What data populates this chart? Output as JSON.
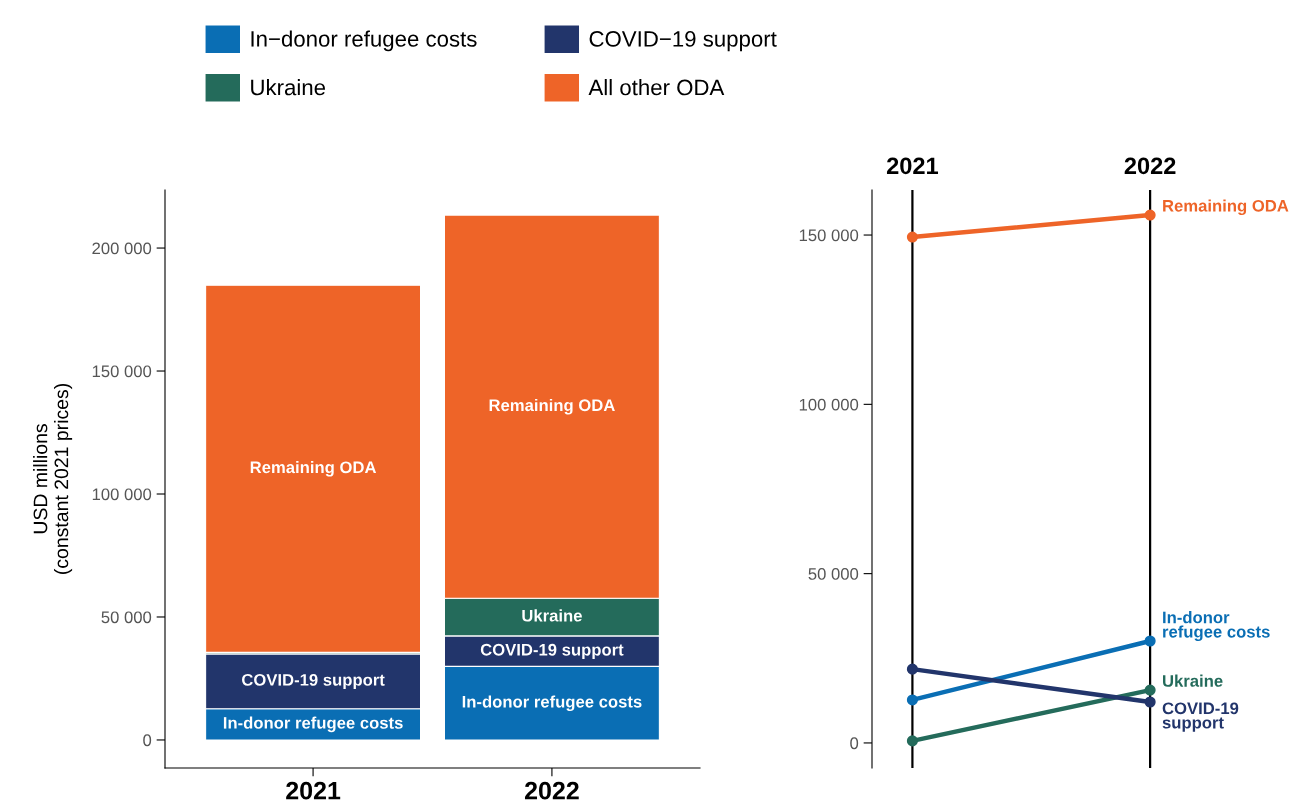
{
  "chart_data": [
    {
      "type": "bar",
      "stacked": true,
      "ylabel": "USD millions\n(constant 2021 prices)",
      "categories": [
        "2021",
        "2022"
      ],
      "series": [
        {
          "name": "In−donor refugee costs",
          "color": "#0a6eb4",
          "values": [
            12700,
            29900
          ],
          "value_labels": [
            "In-donor refugee costs",
            "In-donor refugee costs"
          ]
        },
        {
          "name": "COVID−19 support",
          "color": "#22356b",
          "values": [
            22300,
            12400
          ],
          "value_labels": [
            "COVID-19 support",
            "COVID-19 support"
          ]
        },
        {
          "name": "Ukraine",
          "color": "#246b5b",
          "values": [
            600,
            15300
          ],
          "value_labels": [
            null,
            "Ukraine"
          ]
        },
        {
          "name": "All other ODA",
          "color": "#ee6428",
          "values": [
            149300,
            155800
          ],
          "value_labels": [
            "Remaining ODA",
            "Remaining ODA"
          ]
        }
      ],
      "ylim": [
        -11400,
        223600
      ],
      "yticks": [
        {
          "value": 0,
          "label": "0"
        },
        {
          "value": 50000,
          "label": "50 000"
        },
        {
          "value": 100000,
          "label": "100 000"
        },
        {
          "value": 150000,
          "label": "150 000"
        },
        {
          "value": 200000,
          "label": "200 000"
        }
      ],
      "legend": "top",
      "grid": false
    },
    {
      "type": "line",
      "categories": [
        "2021",
        "2022"
      ],
      "marker": "circle",
      "grid": "x",
      "legend": false,
      "series": [
        {
          "name": "Remaining ODA",
          "color": "#ee6428",
          "values": [
            149400,
            155900
          ]
        },
        {
          "name": "In-donor\nrefugee costs",
          "color": "#0a6eb4",
          "values": [
            12700,
            30100
          ]
        },
        {
          "name": "Ukraine",
          "color": "#246b5b",
          "values": [
            600,
            15600
          ]
        },
        {
          "name": "COVID-19\nsupport",
          "color": "#22356b",
          "values": [
            21800,
            12100
          ]
        }
      ],
      "ylim": [
        -7400,
        163300
      ],
      "yticks": [
        {
          "value": 0,
          "label": "0"
        },
        {
          "value": 50000,
          "label": "50 000"
        },
        {
          "value": 100000,
          "label": "100 000"
        },
        {
          "value": 150000,
          "label": "150 000"
        }
      ]
    }
  ]
}
